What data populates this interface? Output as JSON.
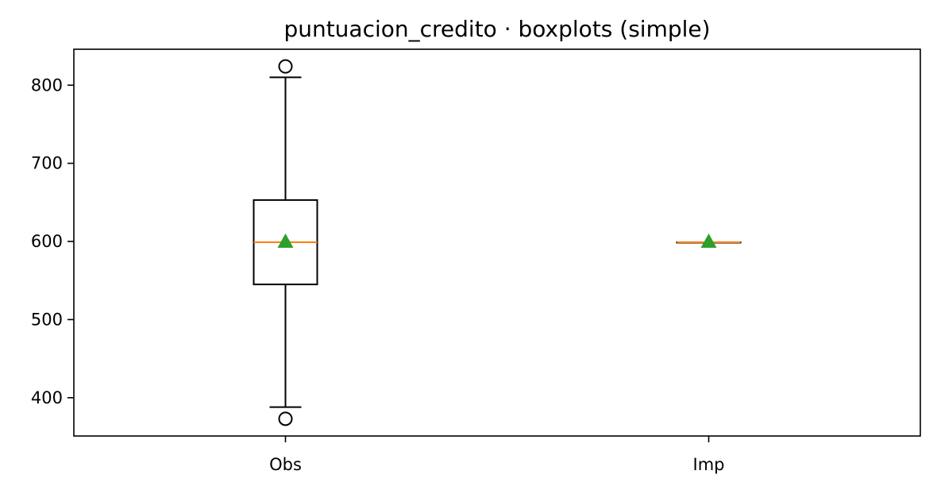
{
  "chart_data": {
    "type": "boxplot",
    "title": "puntuacion_credito · boxplots (simple)",
    "xlabel": "",
    "ylabel": "",
    "ylim": [
      351,
      846
    ],
    "yticks": [
      400,
      500,
      600,
      700,
      800
    ],
    "grid": false,
    "categories": [
      "Obs",
      "Imp"
    ],
    "boxes": [
      {
        "label": "Obs",
        "whisker_low": 388,
        "q1": 545,
        "median": 599,
        "q3": 653,
        "whisker_high": 810,
        "mean": 600,
        "outliers": [
          824,
          373
        ]
      },
      {
        "label": "Imp",
        "whisker_low": 599,
        "q1": 599,
        "median": 599,
        "q3": 599,
        "whisker_high": 599,
        "mean": 600,
        "outliers": []
      }
    ],
    "colors": {
      "box": "#000000",
      "median": "#ff7f0e",
      "mean": "#2ca02c"
    }
  }
}
